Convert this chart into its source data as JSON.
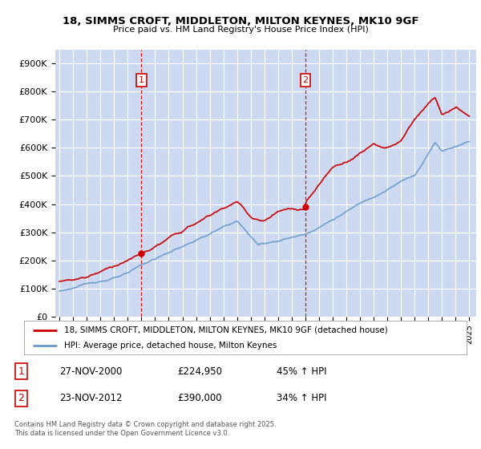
{
  "title": "18, SIMMS CROFT, MIDDLETON, MILTON KEYNES, MK10 9GF",
  "subtitle": "Price paid vs. HM Land Registry's House Price Index (HPI)",
  "ylim": [
    0,
    950000
  ],
  "yticks": [
    0,
    100000,
    200000,
    300000,
    400000,
    500000,
    600000,
    700000,
    800000,
    900000
  ],
  "ytick_labels": [
    "£0",
    "£100K",
    "£200K",
    "£300K",
    "£400K",
    "£500K",
    "£600K",
    "£700K",
    "£800K",
    "£900K"
  ],
  "bg_color": "#ccd9f0",
  "grid_color": "#ffffff",
  "line1_color": "#cc0000",
  "line2_color": "#6699cc",
  "vline_color": "#cc0000",
  "sale1_year": 2001.0,
  "sale1_price": 224950,
  "sale2_year": 2013.0,
  "sale2_price": 390000,
  "legend1": "18, SIMMS CROFT, MIDDLETON, MILTON KEYNES, MK10 9GF (detached house)",
  "legend2": "HPI: Average price, detached house, Milton Keynes",
  "table_rows": [
    [
      "1",
      "27-NOV-2000",
      "£224,950",
      "45% ↑ HPI"
    ],
    [
      "2",
      "23-NOV-2012",
      "£390,000",
      "34% ↑ HPI"
    ]
  ],
  "footnote": "Contains HM Land Registry data © Crown copyright and database right 2025.\nThis data is licensed under the Open Government Licence v3.0.",
  "xmin": 1994.7,
  "xmax": 2025.5
}
